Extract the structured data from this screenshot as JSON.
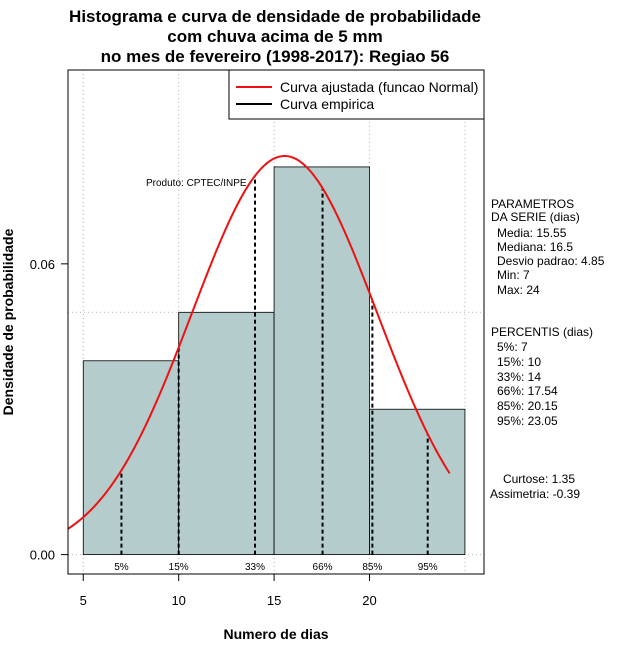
{
  "chart_data": {
    "type": "bar",
    "title_lines": [
      "Histograma e curva de densidade de probabilidade",
      "com chuva acima de 5 mm",
      "no mes de fevereiro (1998-2017): Regiao 56"
    ],
    "xlabel": "Numero de dias",
    "ylabel": "Densidade de probabilidade",
    "xlim": [
      4.2,
      26
    ],
    "ylim": [
      -0.004,
      0.1
    ],
    "x_ticks": [
      5,
      10,
      15,
      20
    ],
    "x_tick_labels": [
      "5",
      "10",
      "15",
      "20"
    ],
    "y_ticks": [
      0,
      0.06
    ],
    "y_tick_labels": [
      "0.00",
      "0.06"
    ],
    "grid": true,
    "grid_x": [
      5,
      10,
      15,
      20,
      25
    ],
    "grid_y": [
      0,
      0.05,
      0.1
    ],
    "bins": [
      {
        "from": 5,
        "to": 10,
        "density": 0.04
      },
      {
        "from": 10,
        "to": 15,
        "density": 0.05
      },
      {
        "from": 15,
        "to": 20,
        "density": 0.08
      },
      {
        "from": 20,
        "to": 25,
        "density": 0.03
      }
    ],
    "bar_color": "#b4cccc",
    "fitted_curve": {
      "name": "Curva ajustada (funcao Normal)",
      "distribution": "normal",
      "mean": 15.55,
      "sd": 4.85,
      "x_range": [
        4.2,
        24.2
      ],
      "color": "#ee1111"
    },
    "empirical": {
      "name": "Curva empirica",
      "color": "#000000"
    },
    "percentile_lines": [
      {
        "label": "5%",
        "x": 7
      },
      {
        "label": "15%",
        "x": 10
      },
      {
        "label": "33%",
        "x": 14
      },
      {
        "label": "66%",
        "x": 17.54
      },
      {
        "label": "85%",
        "x": 20.15
      },
      {
        "label": "95%",
        "x": 23.05
      }
    ],
    "legend_position": "top-right"
  },
  "product_note": "Produto: CPTEC/INPE",
  "parametros": {
    "header": [
      "PARAMETROS",
      "DA SERIE (dias)"
    ],
    "lines": [
      "Media: 15.55",
      "Mediana: 16.5",
      "Desvio padrao: 4.85",
      "Min: 7",
      "Max: 24"
    ]
  },
  "percentis": {
    "header": "PERCENTIS (dias)",
    "lines": [
      "5%: 7",
      "15%: 10",
      "33%: 14",
      "66%: 17.54",
      "85%: 20.15",
      "95%: 23.05"
    ]
  },
  "shape": {
    "lines": [
      "Curtose: 1.35",
      "Assimetria: -0.39"
    ]
  }
}
